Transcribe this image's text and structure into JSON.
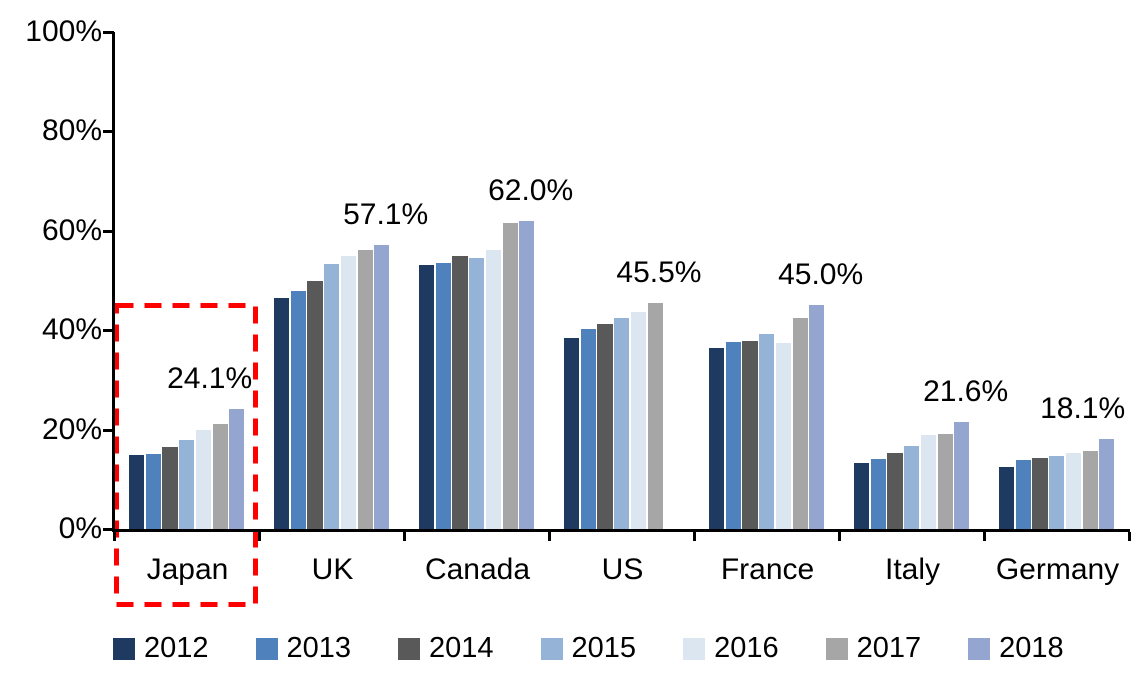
{
  "chart_data": {
    "type": "bar",
    "title": "",
    "categories": [
      "Japan",
      "UK",
      "Canada",
      "US",
      "France",
      "Italy",
      "Germany"
    ],
    "series": [
      {
        "name": "2012",
        "color": "#1F3A60",
        "values": [
          14.8,
          46.5,
          53.1,
          38.4,
          36.5,
          13.2,
          12.4
        ]
      },
      {
        "name": "2013",
        "color": "#4F81BD",
        "values": [
          15.0,
          47.9,
          53.6,
          40.2,
          37.7,
          14.1,
          13.9
        ]
      },
      {
        "name": "2014",
        "color": "#595959",
        "values": [
          16.5,
          50.0,
          54.9,
          41.2,
          37.8,
          15.2,
          14.2
        ]
      },
      {
        "name": "2015",
        "color": "#95B3D7",
        "values": [
          17.9,
          53.3,
          54.6,
          42.4,
          39.3,
          16.8,
          14.6
        ]
      },
      {
        "name": "2016",
        "color": "#DCE6F1",
        "values": [
          19.9,
          55.0,
          56.2,
          43.6,
          37.4,
          19.0,
          15.2
        ]
      },
      {
        "name": "2017",
        "color": "#A6A6A6",
        "values": [
          21.1,
          56.2,
          61.6,
          45.5,
          42.4,
          19.2,
          15.7
        ]
      },
      {
        "name": "2018",
        "color": "#94A5D0",
        "values": [
          24.1,
          57.1,
          62.0,
          null,
          45.0,
          21.6,
          18.1
        ]
      }
    ],
    "data_labels": [
      "24.1%",
      "57.1%",
      "62.0%",
      "45.5%",
      "45.0%",
      "21.6%",
      "18.1%"
    ],
    "y_ticks": [
      "0%",
      "20%",
      "40%",
      "60%",
      "80%",
      "100%"
    ],
    "ylim": [
      0,
      100
    ],
    "y_step": 20,
    "grid": "off",
    "legend_position": "bottom",
    "axis_color": "#000000",
    "text_color": "#000000",
    "highlight": {
      "category": "Japan",
      "style": "red-dashed-box",
      "color": "#FF0000"
    }
  }
}
